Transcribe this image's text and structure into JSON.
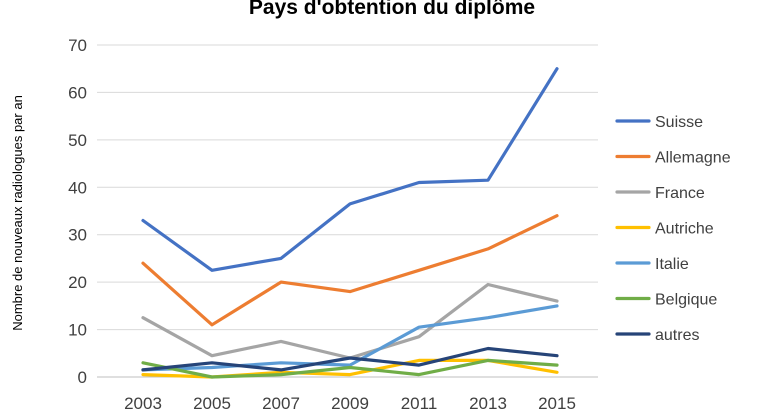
{
  "chart_data": {
    "type": "line",
    "title": "Pays d'obtention du diplôme",
    "xlabel": "",
    "ylabel": "Nombre de nouveaux radiologues par an",
    "x": [
      2003,
      2005,
      2007,
      2009,
      2011,
      2013,
      2015
    ],
    "ylim": [
      0,
      70
    ],
    "yticks": [
      0,
      10,
      20,
      30,
      40,
      50,
      60,
      70
    ],
    "grid": true,
    "legend": "right",
    "series": [
      {
        "name": "Suisse",
        "color": "#4472c4",
        "values": [
          33,
          22.5,
          25,
          36.5,
          41,
          41.5,
          65
        ]
      },
      {
        "name": "Allemagne",
        "color": "#ed7d31",
        "values": [
          24,
          11,
          20,
          18,
          22.5,
          27,
          34
        ]
      },
      {
        "name": "France",
        "color": "#a5a5a5",
        "values": [
          12.5,
          4.5,
          7.5,
          4,
          8.5,
          19.5,
          16
        ]
      },
      {
        "name": "Autriche",
        "color": "#ffc000",
        "values": [
          0.5,
          0,
          1,
          0.5,
          3.5,
          3.5,
          1
        ]
      },
      {
        "name": "Italie",
        "color": "#5b9bd5",
        "values": [
          1.5,
          2,
          3,
          2.5,
          10.5,
          12.5,
          15
        ]
      },
      {
        "name": "Belgique",
        "color": "#70ad47",
        "values": [
          3,
          0,
          0.5,
          2,
          0.5,
          3.5,
          2.5
        ]
      },
      {
        "name": "autres",
        "color": "#264478",
        "values": [
          1.5,
          3,
          1.5,
          4,
          2.5,
          6,
          4.5
        ]
      }
    ]
  }
}
